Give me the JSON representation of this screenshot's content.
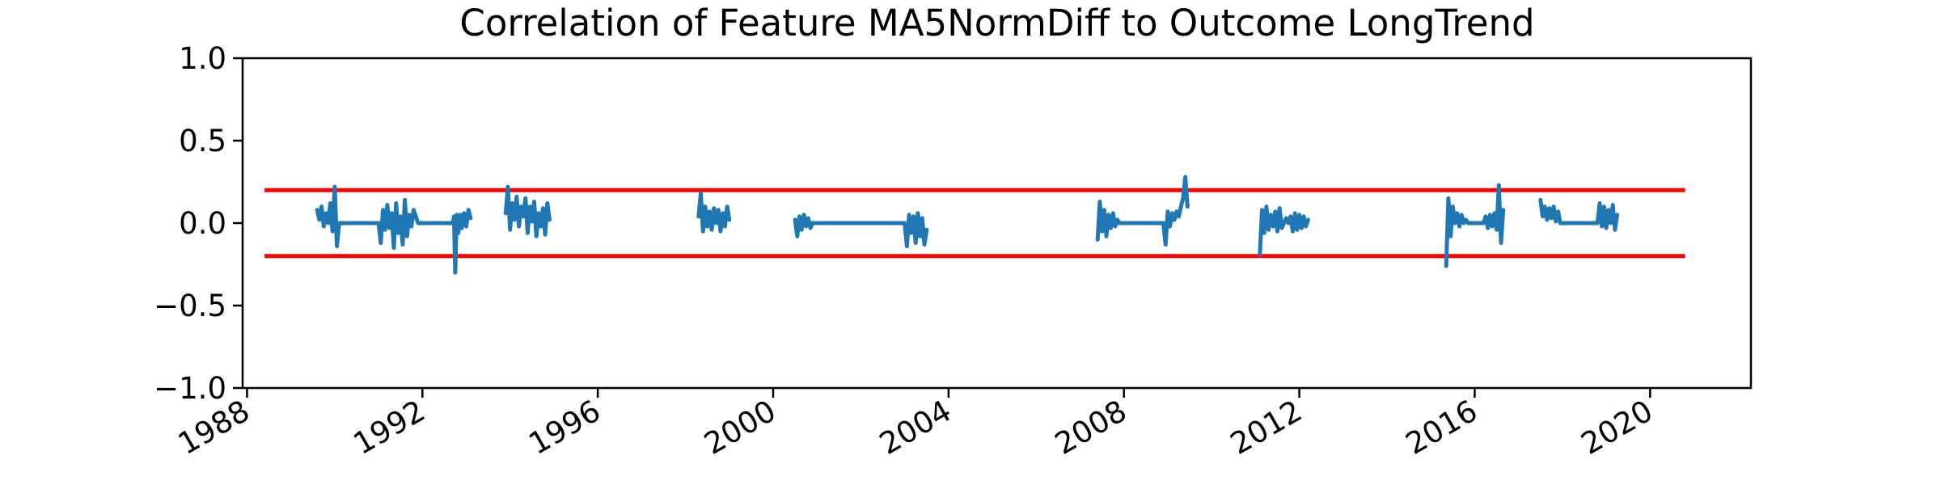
{
  "chart_data": {
    "type": "line",
    "title": "Correlation of Feature MA5NormDiff to Outcome LongTrend",
    "xlabel": "",
    "ylabel": "",
    "xlim": [
      1987.9,
      2022.3
    ],
    "ylim": [
      -1.0,
      1.0
    ],
    "x_ticks": [
      1988,
      1992,
      1996,
      2000,
      2004,
      2008,
      2012,
      2016,
      2020
    ],
    "y_ticks": [
      1.0,
      0.5,
      0.0,
      -0.5,
      -1.0
    ],
    "y_tick_labels": [
      "1.0",
      "0.5",
      "0.0",
      "−0.5",
      "−1.0"
    ],
    "grid": false,
    "legend": "none",
    "colors": {
      "series": "#1f77b4",
      "threshold": "#ff0000"
    },
    "thresholds": [
      {
        "y": 0.2,
        "x_range": [
          1988.4,
          2020.8
        ]
      },
      {
        "y": -0.2,
        "x_range": [
          1988.4,
          2020.8
        ]
      }
    ],
    "segments": [
      {
        "points": [
          [
            1989.6,
            0.08
          ],
          [
            1989.65,
            0.02
          ],
          [
            1989.7,
            0.1
          ],
          [
            1989.75,
            -0.02
          ],
          [
            1989.8,
            0.06
          ],
          [
            1989.85,
            0.0
          ],
          [
            1989.9,
            0.12
          ],
          [
            1989.95,
            -0.05
          ],
          [
            1990.0,
            0.22
          ],
          [
            1990.05,
            -0.14
          ],
          [
            1990.1,
            0.0
          ],
          [
            1991.0,
            0.0
          ],
          [
            1991.05,
            -0.12
          ],
          [
            1991.1,
            0.08
          ],
          [
            1991.15,
            -0.04
          ],
          [
            1991.2,
            0.11
          ],
          [
            1991.25,
            -0.03
          ],
          [
            1991.3,
            0.06
          ],
          [
            1991.35,
            -0.15
          ],
          [
            1991.4,
            0.12
          ],
          [
            1991.45,
            -0.06
          ],
          [
            1991.5,
            0.04
          ],
          [
            1991.55,
            -0.13
          ],
          [
            1991.6,
            0.14
          ],
          [
            1991.65,
            -0.08
          ],
          [
            1991.7,
            0.05
          ],
          [
            1991.75,
            -0.02
          ],
          [
            1991.8,
            0.08
          ],
          [
            1991.9,
            0.0
          ],
          [
            1992.7,
            0.0
          ],
          [
            1992.72,
            0.04
          ],
          [
            1992.75,
            -0.3
          ],
          [
            1992.78,
            0.05
          ],
          [
            1992.82,
            -0.06
          ],
          [
            1992.86,
            0.05
          ],
          [
            1992.9,
            -0.03
          ],
          [
            1992.95,
            0.06
          ],
          [
            1993.0,
            -0.02
          ],
          [
            1993.05,
            0.08
          ],
          [
            1993.1,
            0.03
          ]
        ]
      },
      {
        "points": [
          [
            1993.9,
            0.06
          ],
          [
            1993.95,
            0.22
          ],
          [
            1994.0,
            -0.04
          ],
          [
            1994.05,
            0.12
          ],
          [
            1994.1,
            0.02
          ],
          [
            1994.15,
            0.16
          ],
          [
            1994.2,
            -0.02
          ],
          [
            1994.25,
            0.1
          ],
          [
            1994.3,
            0.04
          ],
          [
            1994.35,
            0.15
          ],
          [
            1994.4,
            -0.06
          ],
          [
            1994.45,
            0.1
          ],
          [
            1994.5,
            0.01
          ],
          [
            1994.55,
            0.13
          ],
          [
            1994.6,
            -0.08
          ],
          [
            1994.65,
            0.06
          ],
          [
            1994.7,
            -0.02
          ],
          [
            1994.75,
            0.09
          ],
          [
            1994.8,
            -0.07
          ],
          [
            1994.85,
            0.12
          ],
          [
            1994.9,
            0.02
          ]
        ]
      },
      {
        "points": [
          [
            1998.3,
            0.04
          ],
          [
            1998.35,
            0.18
          ],
          [
            1998.4,
            -0.05
          ],
          [
            1998.45,
            0.1
          ],
          [
            1998.5,
            -0.02
          ],
          [
            1998.55,
            0.07
          ],
          [
            1998.6,
            -0.04
          ],
          [
            1998.65,
            0.09
          ],
          [
            1998.7,
            0.0
          ],
          [
            1998.75,
            0.08
          ],
          [
            1998.8,
            -0.05
          ],
          [
            1998.85,
            0.06
          ],
          [
            1998.9,
            -0.02
          ],
          [
            1998.95,
            0.1
          ],
          [
            1999.0,
            0.02
          ]
        ]
      },
      {
        "points": [
          [
            2000.5,
            0.02
          ],
          [
            2000.55,
            -0.08
          ],
          [
            2000.6,
            0.04
          ],
          [
            2000.65,
            -0.04
          ],
          [
            2000.7,
            0.05
          ],
          [
            2000.75,
            -0.02
          ],
          [
            2000.8,
            0.03
          ],
          [
            2000.85,
            -0.03
          ],
          [
            2000.9,
            0.0
          ],
          [
            2003.0,
            0.0
          ],
          [
            2003.05,
            -0.14
          ],
          [
            2003.1,
            0.05
          ],
          [
            2003.15,
            -0.06
          ],
          [
            2003.2,
            0.04
          ],
          [
            2003.25,
            -0.12
          ],
          [
            2003.3,
            0.06
          ],
          [
            2003.35,
            -0.08
          ],
          [
            2003.4,
            0.03
          ],
          [
            2003.45,
            -0.13
          ],
          [
            2003.5,
            -0.04
          ]
        ]
      },
      {
        "points": [
          [
            2007.4,
            -0.1
          ],
          [
            2007.45,
            0.13
          ],
          [
            2007.5,
            -0.05
          ],
          [
            2007.55,
            0.08
          ],
          [
            2007.6,
            -0.08
          ],
          [
            2007.65,
            0.05
          ],
          [
            2007.7,
            -0.03
          ],
          [
            2007.75,
            0.06
          ],
          [
            2007.8,
            -0.02
          ],
          [
            2007.85,
            0.02
          ],
          [
            2007.9,
            0.0
          ],
          [
            2008.9,
            0.0
          ],
          [
            2008.95,
            -0.13
          ],
          [
            2009.0,
            0.07
          ],
          [
            2009.05,
            -0.02
          ],
          [
            2009.1,
            0.06
          ],
          [
            2009.15,
            0.02
          ],
          [
            2009.2,
            0.07
          ],
          [
            2009.25,
            0.04
          ],
          [
            2009.3,
            0.1
          ],
          [
            2009.35,
            0.15
          ],
          [
            2009.4,
            0.28
          ],
          [
            2009.45,
            0.1
          ]
        ]
      },
      {
        "points": [
          [
            2011.1,
            -0.19
          ],
          [
            2011.15,
            0.08
          ],
          [
            2011.2,
            -0.06
          ],
          [
            2011.25,
            0.1
          ],
          [
            2011.3,
            -0.04
          ],
          [
            2011.35,
            0.05
          ],
          [
            2011.4,
            -0.02
          ],
          [
            2011.45,
            0.07
          ],
          [
            2011.5,
            -0.05
          ],
          [
            2011.55,
            0.09
          ],
          [
            2011.6,
            -0.03
          ],
          [
            2011.65,
            0.0
          ],
          [
            2011.7,
            0.03
          ],
          [
            2011.75,
            0.0
          ],
          [
            2011.8,
            0.04
          ],
          [
            2011.85,
            -0.05
          ],
          [
            2011.9,
            0.06
          ],
          [
            2011.95,
            -0.04
          ],
          [
            2012.0,
            0.05
          ],
          [
            2012.05,
            -0.03
          ],
          [
            2012.1,
            0.04
          ],
          [
            2012.15,
            -0.02
          ],
          [
            2012.2,
            0.02
          ]
        ]
      },
      {
        "points": [
          [
            2015.35,
            -0.26
          ],
          [
            2015.4,
            0.15
          ],
          [
            2015.45,
            -0.08
          ],
          [
            2015.5,
            0.1
          ],
          [
            2015.55,
            0.0
          ],
          [
            2015.6,
            0.06
          ],
          [
            2015.65,
            -0.02
          ],
          [
            2015.7,
            0.05
          ],
          [
            2015.75,
            0.0
          ],
          [
            2015.8,
            0.02
          ],
          [
            2015.85,
            0.0
          ],
          [
            2016.2,
            0.0
          ],
          [
            2016.25,
            0.04
          ],
          [
            2016.3,
            -0.03
          ],
          [
            2016.35,
            0.05
          ],
          [
            2016.4,
            -0.02
          ],
          [
            2016.45,
            0.06
          ],
          [
            2016.5,
            -0.04
          ],
          [
            2016.55,
            0.23
          ],
          [
            2016.6,
            -0.12
          ],
          [
            2016.65,
            0.08
          ]
        ]
      },
      {
        "points": [
          [
            2017.5,
            0.14
          ],
          [
            2017.55,
            0.04
          ],
          [
            2017.6,
            0.1
          ],
          [
            2017.65,
            0.02
          ],
          [
            2017.7,
            0.09
          ],
          [
            2017.75,
            0.03
          ],
          [
            2017.8,
            0.1
          ],
          [
            2017.85,
            0.01
          ],
          [
            2017.9,
            0.07
          ],
          [
            2017.95,
            0.0
          ],
          [
            2018.8,
            0.0
          ],
          [
            2018.85,
            0.12
          ],
          [
            2018.9,
            -0.02
          ],
          [
            2018.95,
            0.1
          ],
          [
            2019.0,
            -0.03
          ],
          [
            2019.05,
            0.08
          ],
          [
            2019.1,
            0.0
          ],
          [
            2019.15,
            0.11
          ],
          [
            2019.2,
            -0.04
          ],
          [
            2019.25,
            0.05
          ]
        ]
      }
    ]
  }
}
